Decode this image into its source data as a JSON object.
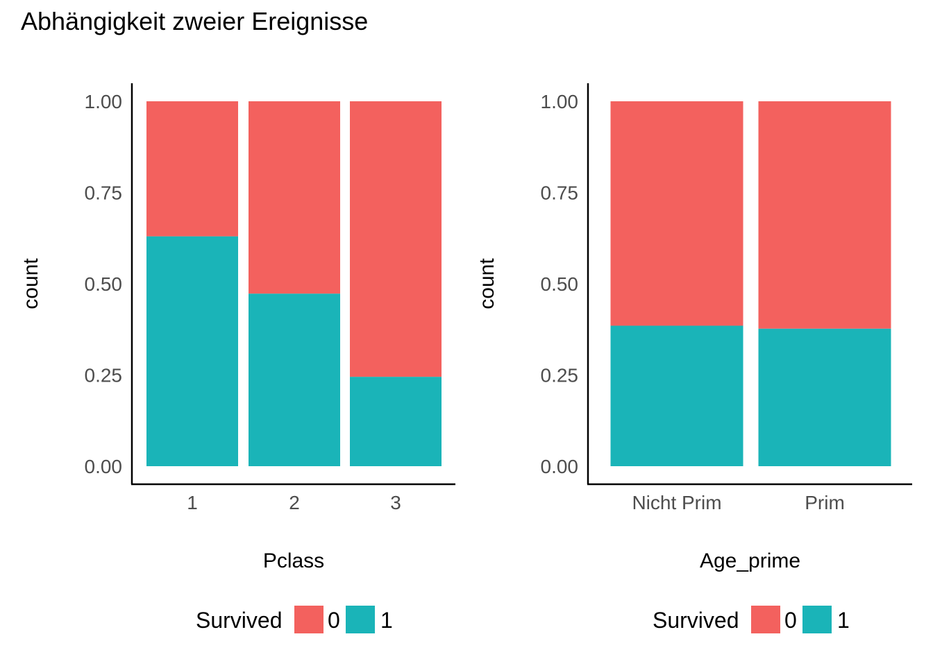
{
  "title": "Abhängigkeit zweier Ereignisse",
  "colors": {
    "survived_0": "#F3615E",
    "survived_1": "#1AB4B8"
  },
  "chart_data": [
    {
      "type": "bar",
      "stacked": true,
      "categories": [
        "1",
        "2",
        "3"
      ],
      "series": [
        {
          "name": "0",
          "values": [
            0.37,
            0.527,
            0.755
          ]
        },
        {
          "name": "1",
          "values": [
            0.63,
            0.473,
            0.245
          ]
        }
      ],
      "xlabel": "Pclass",
      "ylabel": "count",
      "ylim": [
        0,
        1
      ],
      "yticks": [
        "0.00",
        "0.25",
        "0.50",
        "0.75",
        "1.00"
      ],
      "legend": {
        "title": "Survived",
        "labels": [
          "0",
          "1"
        ],
        "position": "bottom"
      }
    },
    {
      "type": "bar",
      "stacked": true,
      "categories": [
        "Nicht Prim",
        "Prim"
      ],
      "series": [
        {
          "name": "0",
          "values": [
            0.615,
            0.623
          ]
        },
        {
          "name": "1",
          "values": [
            0.385,
            0.377
          ]
        }
      ],
      "xlabel": "Age_prime",
      "ylabel": "count",
      "ylim": [
        0,
        1
      ],
      "yticks": [
        "0.00",
        "0.25",
        "0.50",
        "0.75",
        "1.00"
      ],
      "legend": {
        "title": "Survived",
        "labels": [
          "0",
          "1"
        ],
        "position": "bottom"
      }
    }
  ]
}
